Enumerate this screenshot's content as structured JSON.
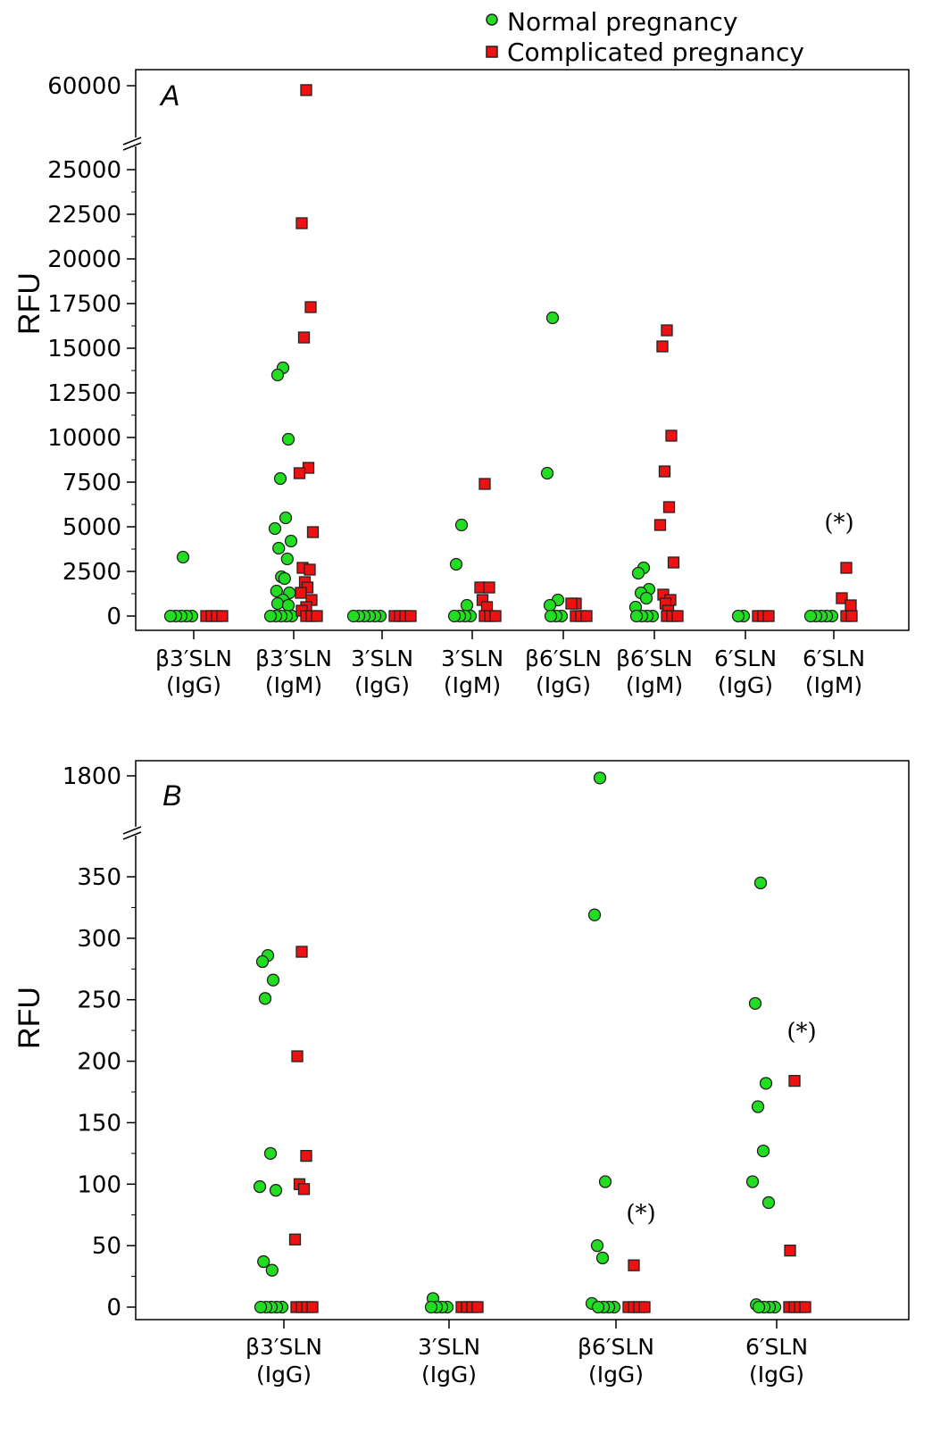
{
  "legend": {
    "normal_label": "Normal pregnancy",
    "complicated_label": "Complicated pregnancy"
  },
  "colors": {
    "normal": "#22dd22",
    "complicated": "#ee1111",
    "outline": "#222222"
  },
  "chart_data": [
    {
      "type": "scatter",
      "panel_label": "A",
      "ylabel": "RFU",
      "axis_break": true,
      "yticks": [
        "0",
        "2500",
        "5000",
        "7500",
        "10000",
        "12500",
        "15000",
        "17500",
        "20000",
        "22500",
        "25000",
        "60000"
      ],
      "categories": [
        {
          "line1": "β3′SLN",
          "line2": "(IgG)"
        },
        {
          "line1": "β3′SLN",
          "line2": "(IgM)"
        },
        {
          "line1": "3′SLN",
          "line2": "(IgG)"
        },
        {
          "line1": "3′SLN",
          "line2": "(IgM)"
        },
        {
          "line1": "β6′SLN",
          "line2": "(IgG)"
        },
        {
          "line1": "β6′SLN",
          "line2": "(IgM)"
        },
        {
          "line1": "6′SLN",
          "line2": "(IgG)"
        },
        {
          "line1": "6′SLN",
          "line2": "(IgM)"
        }
      ],
      "annotations": [
        {
          "category": 7,
          "text": "(*)",
          "value": 4800
        }
      ],
      "series": [
        {
          "name": "Normal pregnancy",
          "marker": "circle",
          "values": [
            [
              3300,
              0,
              0,
              0,
              0,
              0
            ],
            [
              13900,
              13500,
              9900,
              7700,
              5500,
              4900,
              4200,
              3800,
              3200,
              2200,
              2100,
              1400,
              1300,
              900,
              700,
              600,
              0,
              0,
              0,
              0,
              0
            ],
            [
              0,
              0,
              0,
              0,
              0,
              0
            ],
            [
              5100,
              2900,
              600,
              0,
              0,
              0,
              0
            ],
            [
              16700,
              8000,
              900,
              600,
              0,
              0,
              0
            ],
            [
              2700,
              2400,
              1500,
              1300,
              1000,
              500,
              0,
              0,
              0,
              0
            ],
            [
              0,
              0
            ],
            [
              0,
              0,
              0,
              0,
              0
            ]
          ]
        },
        {
          "name": "Complicated pregnancy",
          "marker": "square",
          "values": [
            [
              0,
              0,
              0,
              0
            ],
            [
              57000,
              22000,
              17300,
              15600,
              8300,
              8000,
              4700,
              2700,
              2600,
              1900,
              1600,
              1300,
              900,
              500,
              300,
              0,
              0,
              0
            ],
            [
              0,
              0,
              0,
              0
            ],
            [
              7400,
              1600,
              1600,
              900,
              500,
              0,
              0,
              0
            ],
            [
              700,
              700,
              0,
              0,
              0
            ],
            [
              16000,
              15100,
              10100,
              8100,
              6100,
              5100,
              3000,
              1200,
              900,
              700,
              300,
              0,
              0,
              0
            ],
            [
              0,
              0,
              0
            ],
            [
              2700,
              1000,
              600,
              0,
              0
            ]
          ]
        }
      ]
    },
    {
      "type": "scatter",
      "panel_label": "B",
      "ylabel": "RFU",
      "axis_break": true,
      "yticks": [
        "0",
        "50",
        "100",
        "150",
        "200",
        "250",
        "300",
        "350",
        "1800"
      ],
      "categories": [
        {
          "line1": "β3′SLN",
          "line2": "(IgG)"
        },
        {
          "line1": "3′SLN",
          "line2": "(IgG)"
        },
        {
          "line1": "β6′SLN",
          "line2": "(IgG)"
        },
        {
          "line1": "6′SLN",
          "line2": "(IgG)"
        }
      ],
      "annotations": [
        {
          "category": 2,
          "text": "(*)",
          "value": 70
        },
        {
          "category": 3,
          "text": "(*)",
          "value": 218
        }
      ],
      "series": [
        {
          "name": "Normal pregnancy",
          "marker": "circle",
          "values": [
            [
              286,
              281,
              266,
              251,
              125,
              98,
              95,
              37,
              30,
              0,
              0,
              0,
              0,
              0
            ],
            [
              7,
              0,
              0,
              0,
              0
            ],
            [
              1750,
              319,
              102,
              50,
              40,
              3,
              0,
              0,
              0,
              0
            ],
            [
              345,
              247,
              182,
              163,
              127,
              102,
              85,
              2,
              0,
              0,
              0,
              0
            ]
          ]
        },
        {
          "name": "Complicated pregnancy",
          "marker": "square",
          "values": [
            [
              289,
              204,
              123,
              100,
              96,
              55,
              0,
              0,
              0,
              0
            ],
            [
              0,
              0,
              0,
              0
            ],
            [
              34,
              0,
              0,
              0,
              0
            ],
            [
              184,
              46,
              0,
              0,
              0,
              0
            ]
          ]
        }
      ]
    }
  ]
}
